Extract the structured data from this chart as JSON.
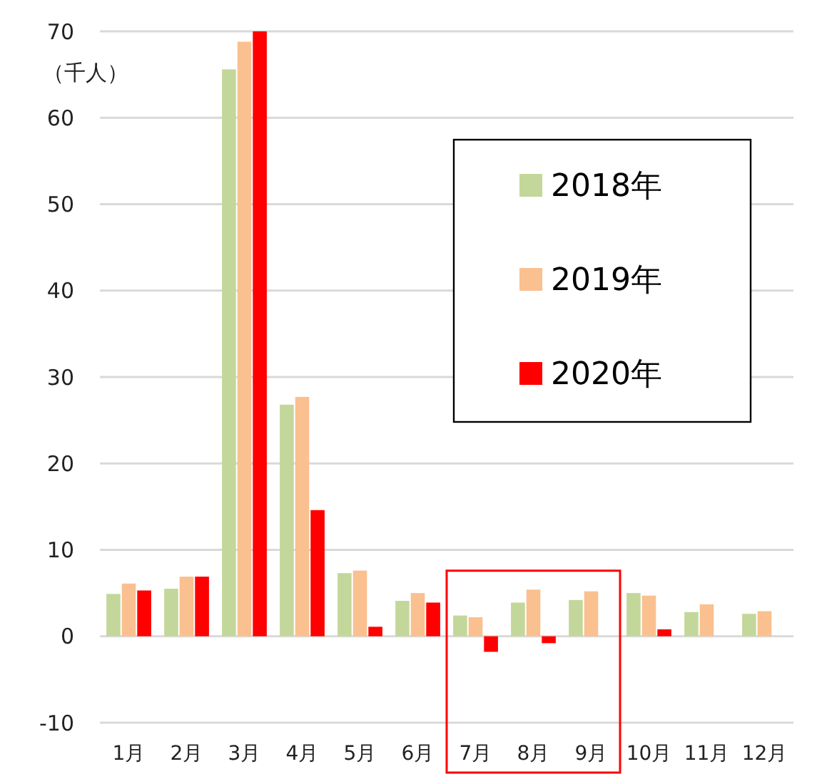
{
  "chart_data": {
    "type": "bar",
    "ylabel": "（千人）",
    "categories": [
      "1月",
      "2月",
      "3月",
      "4月",
      "5月",
      "6月",
      "7月",
      "8月",
      "9月",
      "10月",
      "11月",
      "12月"
    ],
    "series": [
      {
        "name": "2018年",
        "color": "#c4d79b",
        "values": [
          4.9,
          5.5,
          65.6,
          26.8,
          7.3,
          4.1,
          2.4,
          3.9,
          4.2,
          5.0,
          2.8,
          2.6
        ]
      },
      {
        "name": "2019年",
        "color": "#fac090",
        "values": [
          6.1,
          6.9,
          68.8,
          27.7,
          7.6,
          5.0,
          2.2,
          5.4,
          5.2,
          4.7,
          3.7,
          2.9
        ]
      },
      {
        "name": "2020年",
        "color": "#ff0000",
        "values": [
          5.3,
          6.9,
          70,
          14.6,
          1.1,
          3.9,
          -1.8,
          -0.8,
          null,
          0.8,
          null,
          null
        ]
      }
    ],
    "ylim": [
      -10,
      70
    ],
    "yticks": [
      -10,
      0,
      10,
      20,
      30,
      40,
      50,
      60,
      70
    ],
    "grid": "y",
    "legend": "top right"
  }
}
